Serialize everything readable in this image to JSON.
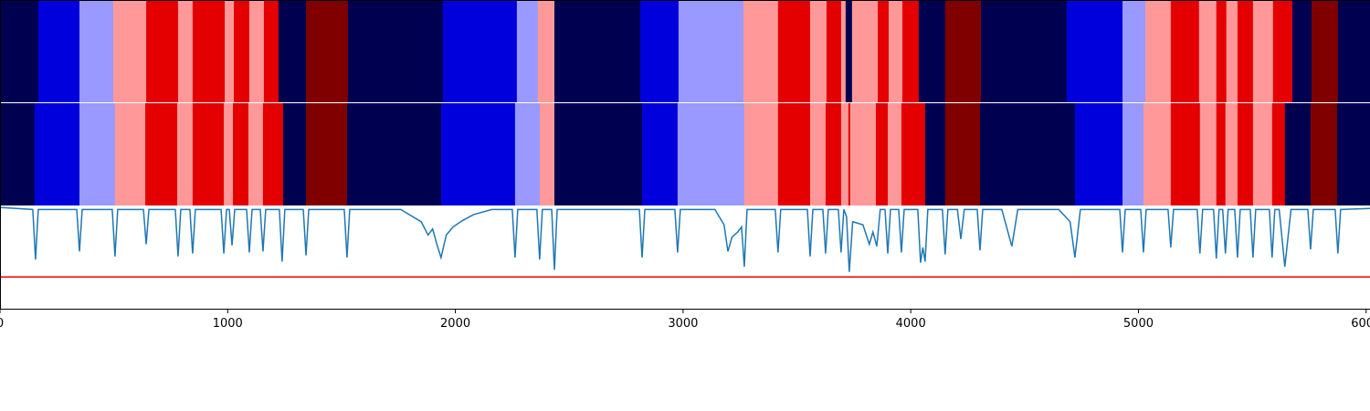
{
  "chart_data": {
    "type": "segments",
    "xlim": [
      0,
      6017
    ],
    "xticks": [
      0,
      1000,
      2000,
      3000,
      4000,
      5000,
      6000
    ],
    "ylim": [
      0,
      1
    ],
    "rows": [
      {
        "edges": [
          0,
          168,
          349,
          497,
          642,
          782,
          846,
          987,
          1027,
          1095,
          1159,
          1223,
          1344,
          1528,
          1945,
          2270,
          2362,
          2435,
          2812,
          2980,
          3265,
          3417,
          3558,
          3630,
          3694,
          3714,
          3742,
          3855,
          3903,
          3963,
          4035,
          4151,
          4308,
          4685,
          4930,
          5030,
          5142,
          5266,
          5342,
          5386,
          5435,
          5503,
          5591,
          5676,
          5760,
          5876,
          6017
        ],
        "colors": [
          "#000050",
          "#0000dd",
          "#9999ff",
          "#ff9999",
          "#e50000",
          "#ff9999",
          "#e50000",
          "#ff9999",
          "#e50000",
          "#ff9999",
          "#e50000",
          "#000050",
          "#800000",
          "#000050",
          "#0000dd",
          "#9999ff",
          "#ff9999",
          "#000050",
          "#0000dd",
          "#9999ff",
          "#ff9999",
          "#e50000",
          "#ff9999",
          "#e50000",
          "#ff9999",
          "#000050",
          "#ff9999",
          "#e50000",
          "#ff9999",
          "#e50000",
          "#000050",
          "#800000",
          "#000050",
          "#0000dd",
          "#9999ff",
          "#ff9999",
          "#e50000",
          "#ff9999",
          "#e50000",
          "#ff9999",
          "#e50000",
          "#ff9999",
          "#e50000",
          "#000050",
          "#800000",
          "#000050"
        ]
      },
      {
        "edges": [
          0,
          152,
          349,
          505,
          638,
          778,
          846,
          983,
          1023,
          1091,
          1155,
          1243,
          1344,
          1524,
          1937,
          2262,
          2371,
          2435,
          2820,
          2976,
          3269,
          3417,
          3558,
          3626,
          3694,
          3726,
          3734,
          3847,
          3899,
          3959,
          4063,
          4151,
          4304,
          4721,
          4930,
          5022,
          5142,
          5270,
          5342,
          5382,
          5435,
          5503,
          5587,
          5643,
          5756,
          5872,
          6017
        ],
        "colors": [
          "#000050",
          "#0000dd",
          "#9999ff",
          "#ff9999",
          "#e50000",
          "#ff9999",
          "#e50000",
          "#ff9999",
          "#e50000",
          "#ff9999",
          "#e50000",
          "#000050",
          "#800000",
          "#000050",
          "#0000dd",
          "#9999ff",
          "#ff9999",
          "#000050",
          "#0000dd",
          "#9999ff",
          "#ff9999",
          "#e50000",
          "#ff9999",
          "#e50000",
          "#ff9999",
          "#e50000",
          "#ff9999",
          "#e50000",
          "#ff9999",
          "#e50000",
          "#000050",
          "#800000",
          "#000050",
          "#0000dd",
          "#9999ff",
          "#ff9999",
          "#e50000",
          "#ff9999",
          "#e50000",
          "#ff9999",
          "#e50000",
          "#ff9999",
          "#e50000",
          "#000050",
          "#800000",
          "#000050"
        ]
      }
    ],
    "line": {
      "color": "#1f77b4",
      "x": [
        0,
        144,
        156,
        168,
        337,
        349,
        361,
        493,
        505,
        517,
        630,
        642,
        654,
        770,
        782,
        794,
        834,
        846,
        858,
        971,
        983,
        995,
        1007,
        1019,
        1031,
        1083,
        1095,
        1107,
        1143,
        1155,
        1167,
        1227,
        1239,
        1251,
        1332,
        1344,
        1356,
        1512,
        1524,
        1536,
        1760,
        1850,
        1880,
        1900,
        1920,
        1937,
        1960,
        1990,
        2030,
        2080,
        2160,
        2250,
        2262,
        2274,
        2358,
        2370,
        2382,
        2423,
        2435,
        2447,
        2808,
        2820,
        2832,
        2964,
        2976,
        2988,
        3140,
        3180,
        3197,
        3215,
        3240,
        3257,
        3269,
        3281,
        3405,
        3417,
        3429,
        3546,
        3558,
        3570,
        3614,
        3626,
        3638,
        3682,
        3694,
        3706,
        3718,
        3730,
        3745,
        3790,
        3818,
        3834,
        3851,
        3866,
        3887,
        3899,
        3911,
        3947,
        3959,
        3971,
        4031,
        4043,
        4053,
        4063,
        4075,
        4139,
        4151,
        4163,
        4205,
        4220,
        4235,
        4292,
        4304,
        4316,
        4400,
        4444,
        4470,
        4650,
        4700,
        4721,
        4745,
        4918,
        4930,
        4942,
        5010,
        5022,
        5034,
        5130,
        5142,
        5154,
        5258,
        5270,
        5282,
        5330,
        5342,
        5354,
        5370,
        5382,
        5394,
        5423,
        5435,
        5447,
        5491,
        5503,
        5515,
        5575,
        5587,
        5599,
        5618,
        5643,
        5670,
        5744,
        5756,
        5768,
        5864,
        5876,
        5888,
        6017
      ],
      "values": [
        0.99,
        0.97,
        0.48,
        0.97,
        0.97,
        0.56,
        0.97,
        0.97,
        0.51,
        0.97,
        0.97,
        0.63,
        0.97,
        0.97,
        0.51,
        0.97,
        0.97,
        0.54,
        0.97,
        0.97,
        0.54,
        0.97,
        0.97,
        0.62,
        0.97,
        0.97,
        0.55,
        0.97,
        0.97,
        0.56,
        0.97,
        0.97,
        0.46,
        0.97,
        0.97,
        0.52,
        0.97,
        0.97,
        0.5,
        0.97,
        0.97,
        0.85,
        0.72,
        0.78,
        0.62,
        0.5,
        0.72,
        0.8,
        0.86,
        0.92,
        0.97,
        0.97,
        0.5,
        0.97,
        0.97,
        0.48,
        0.97,
        0.97,
        0.38,
        0.97,
        0.97,
        0.5,
        0.97,
        0.97,
        0.55,
        0.97,
        0.97,
        0.82,
        0.56,
        0.7,
        0.75,
        0.8,
        0.41,
        0.97,
        0.97,
        0.55,
        0.97,
        0.97,
        0.51,
        0.97,
        0.97,
        0.54,
        0.97,
        0.97,
        0.55,
        0.97,
        0.9,
        0.36,
        0.85,
        0.82,
        0.63,
        0.75,
        0.61,
        0.97,
        0.97,
        0.54,
        0.97,
        0.97,
        0.55,
        0.97,
        0.97,
        0.45,
        0.6,
        0.46,
        0.97,
        0.97,
        0.53,
        0.97,
        0.97,
        0.68,
        0.97,
        0.97,
        0.57,
        0.97,
        0.97,
        0.61,
        0.97,
        0.97,
        0.85,
        0.5,
        0.97,
        0.97,
        0.55,
        0.97,
        0.97,
        0.55,
        0.97,
        0.97,
        0.6,
        0.97,
        0.97,
        0.54,
        0.97,
        0.97,
        0.49,
        0.97,
        0.97,
        0.54,
        0.97,
        0.97,
        0.5,
        0.97,
        0.97,
        0.5,
        0.97,
        0.97,
        0.5,
        0.97,
        0.97,
        0.41,
        0.97,
        0.97,
        0.58,
        0.97,
        0.97,
        0.54,
        0.97,
        0.98
      ]
    },
    "threshold": {
      "value": 0.31,
      "color": "#e50000"
    }
  }
}
